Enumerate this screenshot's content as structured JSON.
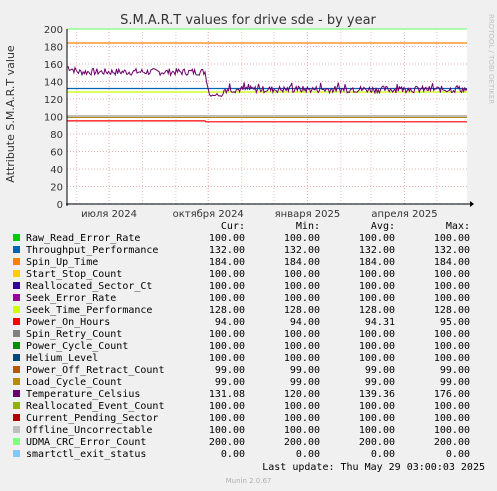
{
  "chart_data": {
    "type": "line",
    "title": "S.M.A.R.T values for drive sde - by year",
    "ylabel": "Attribute S.M.A.R.T value",
    "watermark": "RRDTOOL / TOBI OETIKER",
    "ylim": [
      0,
      200
    ],
    "y_ticks": [
      0,
      20,
      40,
      60,
      80,
      100,
      120,
      140,
      160,
      180,
      200
    ],
    "x_range": [
      "2024-05-23",
      "2025-05-29"
    ],
    "x_ticks": [
      {
        "label": "июля 2024",
        "date": "2024-07-01"
      },
      {
        "label": "октября 2024",
        "date": "2024-10-01"
      },
      {
        "label": "января 2025",
        "date": "2025-01-01"
      },
      {
        "label": "апреля 2025",
        "date": "2025-04-01"
      }
    ],
    "grid": true,
    "columns": [
      "Cur:",
      "Min:",
      "Avg:",
      "Max:"
    ],
    "series": [
      {
        "name": "Raw_Read_Error_Rate",
        "color": "#00cc00",
        "cur": "100.00",
        "min": "100.00",
        "avg": "100.00",
        "max": "100.00",
        "values": [
          [
            0,
            100
          ],
          [
            1,
            100
          ]
        ]
      },
      {
        "name": "Throughput_Performance",
        "color": "#0066b3",
        "cur": "132.00",
        "min": "132.00",
        "avg": "132.00",
        "max": "132.00",
        "values": [
          [
            0,
            132
          ],
          [
            1,
            132
          ]
        ]
      },
      {
        "name": "Spin_Up_Time",
        "color": "#ff8000",
        "cur": "184.00",
        "min": "184.00",
        "avg": "184.00",
        "max": "184.00",
        "values": [
          [
            0,
            184
          ],
          [
            1,
            184
          ]
        ]
      },
      {
        "name": "Start_Stop_Count",
        "color": "#ffcc00",
        "cur": "100.00",
        "min": "100.00",
        "avg": "100.00",
        "max": "100.00",
        "values": [
          [
            0,
            100
          ],
          [
            1,
            100
          ]
        ]
      },
      {
        "name": "Reallocated_Sector_Ct",
        "color": "#330099",
        "cur": "100.00",
        "min": "100.00",
        "avg": "100.00",
        "max": "100.00",
        "values": [
          [
            0,
            100
          ],
          [
            1,
            100
          ]
        ]
      },
      {
        "name": "Seek_Error_Rate",
        "color": "#990099",
        "cur": "100.00",
        "min": "100.00",
        "avg": "100.00",
        "max": "100.00",
        "values": [
          [
            0,
            100
          ],
          [
            1,
            100
          ]
        ]
      },
      {
        "name": "Seek_Time_Performance",
        "color": "#ccff00",
        "cur": "128.00",
        "min": "128.00",
        "avg": "128.00",
        "max": "128.00",
        "values": [
          [
            0,
            128
          ],
          [
            1,
            128
          ]
        ]
      },
      {
        "name": "Power_On_Hours",
        "color": "#ff0000",
        "cur": "94.00",
        "min": "94.00",
        "avg": "94.31",
        "max": "95.00",
        "values": [
          [
            0,
            95
          ],
          [
            0.345,
            95
          ],
          [
            0.347,
            94
          ],
          [
            1,
            94
          ]
        ]
      },
      {
        "name": "Spin_Retry_Count",
        "color": "#808080",
        "cur": "100.00",
        "min": "100.00",
        "avg": "100.00",
        "max": "100.00",
        "values": [
          [
            0,
            100
          ],
          [
            1,
            100
          ]
        ]
      },
      {
        "name": "Power_Cycle_Count",
        "color": "#008f00",
        "cur": "100.00",
        "min": "100.00",
        "avg": "100.00",
        "max": "100.00",
        "values": [
          [
            0,
            100
          ],
          [
            1,
            100
          ]
        ]
      },
      {
        "name": "Helium_Level",
        "color": "#00487d",
        "cur": "100.00",
        "min": "100.00",
        "avg": "100.00",
        "max": "100.00",
        "values": [
          [
            0,
            100
          ],
          [
            1,
            100
          ]
        ]
      },
      {
        "name": "Power_Off_Retract_Count",
        "color": "#b35a00",
        "cur": "99.00",
        "min": "99.00",
        "avg": "99.00",
        "max": "99.00",
        "values": [
          [
            0,
            99
          ],
          [
            1,
            99
          ]
        ]
      },
      {
        "name": "Load_Cycle_Count",
        "color": "#b38f00",
        "cur": "99.00",
        "min": "99.00",
        "avg": "99.00",
        "max": "99.00",
        "values": [
          [
            0,
            99
          ],
          [
            1,
            99
          ]
        ]
      },
      {
        "name": "Temperature_Celsius",
        "color": "#6b006b",
        "cur": "131.08",
        "min": "120.00",
        "avg": "139.36",
        "max": "176.00",
        "values": []
      },
      {
        "name": "Reallocated_Event_Count",
        "color": "#8fb300",
        "cur": "100.00",
        "min": "100.00",
        "avg": "100.00",
        "max": "100.00",
        "values": [
          [
            0,
            100
          ],
          [
            1,
            100
          ]
        ]
      },
      {
        "name": "Current_Pending_Sector",
        "color": "#b30000",
        "cur": "100.00",
        "min": "100.00",
        "avg": "100.00",
        "max": "100.00",
        "values": [
          [
            0,
            100
          ],
          [
            1,
            100
          ]
        ]
      },
      {
        "name": "Offline_Uncorrectable",
        "color": "#bebebe",
        "cur": "100.00",
        "min": "100.00",
        "avg": "100.00",
        "max": "100.00",
        "values": [
          [
            0,
            100
          ],
          [
            1,
            100
          ]
        ]
      },
      {
        "name": "UDMA_CRC_Error_Count",
        "color": "#80ff80",
        "cur": "200.00",
        "min": "200.00",
        "avg": "200.00",
        "max": "200.00",
        "values": [
          [
            0,
            200
          ],
          [
            1,
            200
          ]
        ]
      },
      {
        "name": "smartctl_exit_status",
        "color": "#80c9ff",
        "cur": "0.00",
        "min": "0.00",
        "avg": "0.00",
        "max": "0.00",
        "values": [
          [
            0,
            0
          ],
          [
            1,
            0
          ]
        ]
      }
    ],
    "temperature_trace": {
      "segment1": {
        "x": [
          0,
          0.345
        ],
        "mean": 151,
        "amplitude": 4
      },
      "drop": {
        "x": [
          0.345,
          0.39
        ],
        "from": 150,
        "to": 125
      },
      "segment2": {
        "x": [
          0.39,
          1
        ],
        "mean": 131,
        "amplitude": 4
      }
    }
  },
  "footer": {
    "last_update": "Last update: Thu May 29 03:00:03 2025",
    "version": "Munin 2.0.67"
  }
}
